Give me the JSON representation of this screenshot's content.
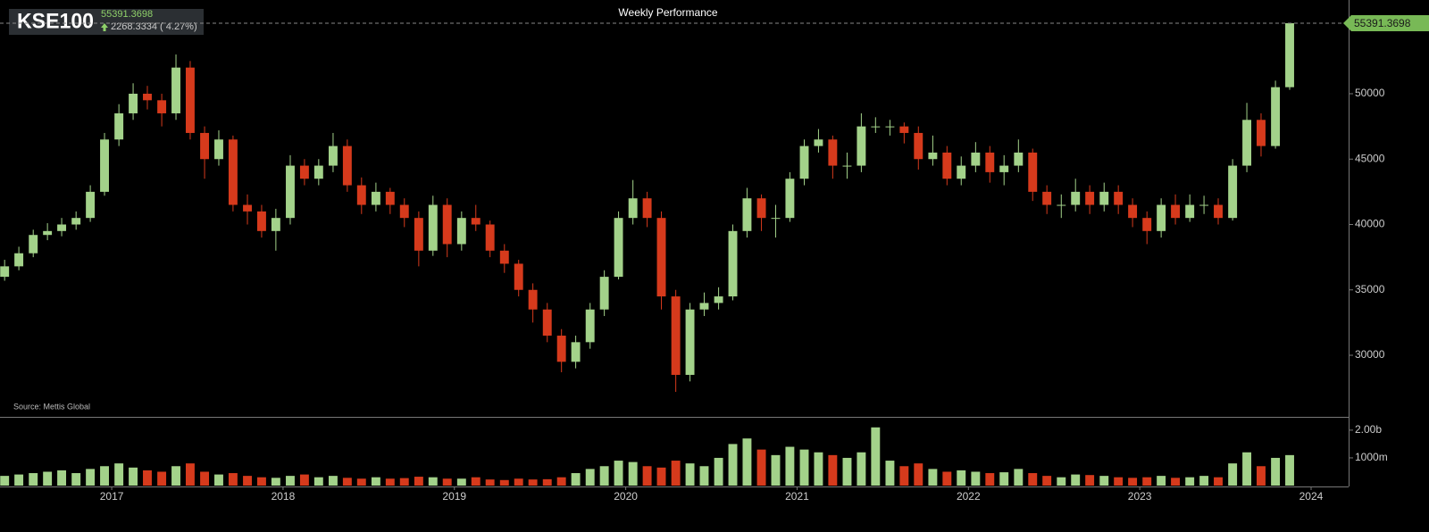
{
  "chart_data": {
    "type": "candlestick",
    "symbol": "KSE100",
    "last_value": 55391.3698,
    "change_label": "2268.3334 ( 4.27%)",
    "title": "Weekly Performance",
    "source": "Source: Mettis Global",
    "up_color": "#a3d28a",
    "down_color": "#d63a1c",
    "grid": false,
    "x": [
      2016.375,
      2016.458,
      2016.542,
      2016.625,
      2016.708,
      2016.792,
      2016.875,
      2016.958,
      2017.042,
      2017.125,
      2017.208,
      2017.292,
      2017.375,
      2017.458,
      2017.542,
      2017.625,
      2017.708,
      2017.792,
      2017.875,
      2017.958,
      2018.042,
      2018.125,
      2018.208,
      2018.292,
      2018.375,
      2018.458,
      2018.542,
      2018.625,
      2018.708,
      2018.792,
      2018.875,
      2018.958,
      2019.042,
      2019.125,
      2019.208,
      2019.292,
      2019.375,
      2019.458,
      2019.542,
      2019.625,
      2019.708,
      2019.792,
      2019.875,
      2019.958,
      2020.042,
      2020.125,
      2020.208,
      2020.292,
      2020.375,
      2020.458,
      2020.542,
      2020.625,
      2020.708,
      2020.792,
      2020.875,
      2020.958,
      2021.042,
      2021.125,
      2021.208,
      2021.292,
      2021.375,
      2021.458,
      2021.542,
      2021.625,
      2021.708,
      2021.792,
      2021.875,
      2021.958,
      2022.042,
      2022.125,
      2022.208,
      2022.292,
      2022.375,
      2022.458,
      2022.542,
      2022.625,
      2022.708,
      2022.792,
      2022.875,
      2022.958,
      2023.042,
      2023.125,
      2023.208,
      2023.292,
      2023.375,
      2023.458,
      2023.542,
      2023.625,
      2023.708,
      2023.792,
      2023.875
    ],
    "open": [
      36000,
      36800,
      37800,
      39200,
      39500,
      40000,
      40500,
      42500,
      46500,
      48500,
      50000,
      49500,
      48500,
      52000,
      47000,
      45000,
      46500,
      41500,
      41000,
      39500,
      40500,
      44500,
      43500,
      44500,
      46000,
      43000,
      41500,
      42500,
      41500,
      40500,
      38000,
      41500,
      38500,
      40500,
      40000,
      38000,
      37000,
      35000,
      33500,
      31500,
      29500,
      31000,
      33500,
      36000,
      40500,
      42000,
      40500,
      34500,
      28500,
      33500,
      34000,
      34500,
      39500,
      42000,
      40500,
      40500,
      43500,
      46000,
      46500,
      44500,
      44500,
      47500,
      47500,
      47500,
      47000,
      45000,
      45500,
      43500,
      44500,
      45500,
      44000,
      44500,
      45500,
      42500,
      41500,
      41500,
      42500,
      41500,
      42500,
      41500,
      40500,
      39500,
      41500,
      40500,
      41500,
      41500,
      40500,
      44500,
      48000,
      46000,
      50500
    ],
    "high": [
      37300,
      38300,
      39600,
      40100,
      40500,
      41000,
      43000,
      47000,
      49200,
      50800,
      50600,
      50000,
      53000,
      52500,
      47500,
      47200,
      46800,
      42300,
      41500,
      41200,
      45300,
      45000,
      45000,
      47000,
      46500,
      43600,
      43200,
      42800,
      42000,
      41000,
      42200,
      42000,
      41000,
      41500,
      40300,
      38500,
      37300,
      35500,
      34000,
      32000,
      31500,
      34000,
      36500,
      41000,
      43400,
      42500,
      41000,
      35000,
      34000,
      34800,
      35200,
      40000,
      42800,
      42300,
      41500,
      44000,
      46500,
      47300,
      46800,
      45500,
      48500,
      48200,
      48000,
      47800,
      47500,
      46800,
      46000,
      45200,
      46300,
      46000,
      45300,
      46500,
      45800,
      43000,
      42300,
      43500,
      43000,
      43200,
      43000,
      42000,
      41000,
      42000,
      42300,
      42300,
      42200,
      42000,
      45000,
      49300,
      48500,
      51000,
      55391.3698
    ],
    "low": [
      35700,
      36500,
      37500,
      38800,
      39100,
      39600,
      40200,
      42200,
      46000,
      48000,
      48800,
      47500,
      48000,
      46500,
      43500,
      44500,
      41000,
      40000,
      39000,
      38000,
      40000,
      43000,
      43000,
      44000,
      42500,
      40800,
      41000,
      40800,
      39800,
      36800,
      37600,
      37500,
      38000,
      39500,
      37500,
      36300,
      34500,
      32500,
      31000,
      28700,
      29000,
      30500,
      33000,
      35800,
      40000,
      39800,
      33500,
      27200,
      28000,
      33000,
      33500,
      34200,
      39000,
      39500,
      39000,
      40200,
      43000,
      45500,
      43500,
      43500,
      44000,
      47000,
      46800,
      46200,
      44200,
      44500,
      43000,
      43000,
      44000,
      43200,
      43000,
      44000,
      41800,
      40800,
      40500,
      41000,
      40800,
      41000,
      40800,
      39800,
      38500,
      39000,
      40000,
      40200,
      40800,
      40000,
      40300,
      44000,
      45200,
      45800,
      50300
    ],
    "close": [
      36800,
      37800,
      39200,
      39500,
      40000,
      40500,
      42500,
      46500,
      48500,
      50000,
      49500,
      48500,
      52000,
      47000,
      45000,
      46500,
      41500,
      41000,
      39500,
      40500,
      44500,
      43500,
      44500,
      46000,
      43000,
      41500,
      42500,
      41500,
      40500,
      38000,
      41500,
      38500,
      40500,
      40000,
      38000,
      37000,
      35000,
      33500,
      31500,
      29500,
      31000,
      33500,
      36000,
      40500,
      42000,
      40500,
      34500,
      28500,
      33500,
      34000,
      34500,
      39500,
      42000,
      40500,
      40500,
      43500,
      46000,
      46500,
      44500,
      44500,
      47500,
      47500,
      47500,
      47000,
      45000,
      45500,
      43500,
      44500,
      45500,
      44000,
      44500,
      45500,
      42500,
      41500,
      41500,
      42500,
      41500,
      42500,
      41500,
      40500,
      39500,
      41500,
      40500,
      41500,
      41500,
      40500,
      44500,
      48000,
      46000,
      50500,
      55391.3698
    ],
    "volume": [
      350,
      400,
      450,
      500,
      550,
      450,
      600,
      700,
      800,
      650,
      550,
      500,
      700,
      800,
      500,
      400,
      450,
      350,
      300,
      280,
      350,
      400,
      300,
      350,
      280,
      250,
      300,
      250,
      270,
      320,
      300,
      250,
      250,
      300,
      220,
      200,
      250,
      220,
      230,
      300,
      450,
      600,
      700,
      900,
      850,
      700,
      650,
      900,
      800,
      700,
      1000,
      1500,
      1700,
      1300,
      1100,
      1400,
      1300,
      1200,
      1100,
      1000,
      1200,
      2100,
      900,
      700,
      800,
      600,
      500,
      550,
      500,
      450,
      480,
      600,
      450,
      350,
      300,
      400,
      380,
      350,
      300,
      280,
      300,
      350,
      280,
      300,
      350,
      300,
      800,
      1200,
      700,
      1000,
      1100
    ],
    "xlim": [
      2016.348,
      2024.219
    ],
    "xticks": [
      2017,
      2018,
      2019,
      2020,
      2021,
      2022,
      2023,
      2024
    ],
    "ylim": [
      25290,
      57167
    ],
    "yticks": [
      30000,
      35000,
      40000,
      45000,
      50000
    ],
    "volume_ylim": [
      0,
      2480
    ],
    "volume_yticks": [
      {
        "value": 1000,
        "label": "1000m"
      },
      {
        "value": 2000,
        "label": "2.00b"
      }
    ]
  }
}
